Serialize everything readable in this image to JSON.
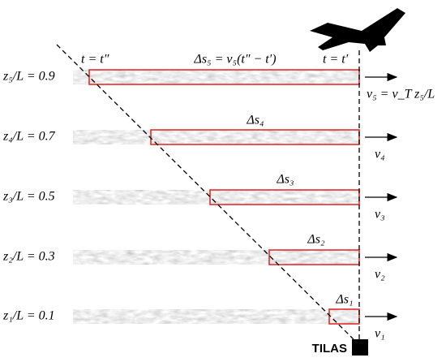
{
  "levels": [
    {
      "height_label": "z₅/L = 0.9",
      "shift_label": "Δs₅ = v₅(t″ − t′)",
      "velocity_label": "v₅ = v_T z₅/L"
    },
    {
      "height_label": "z₄/L = 0.7",
      "shift_label": "Δs₄",
      "velocity_label": "v₄"
    },
    {
      "height_label": "z₃/L = 0.5",
      "shift_label": "Δs₃",
      "velocity_label": "v₃"
    },
    {
      "height_label": "z₂/L = 0.3",
      "shift_label": "Δs₂",
      "velocity_label": "v₂"
    },
    {
      "height_label": "z₁/L = 0.1",
      "shift_label": "Δs₁",
      "velocity_label": "v₁"
    }
  ],
  "time_labels": {
    "start": "t = t″",
    "end": "t = t′"
  },
  "station_label": "TILAS"
}
